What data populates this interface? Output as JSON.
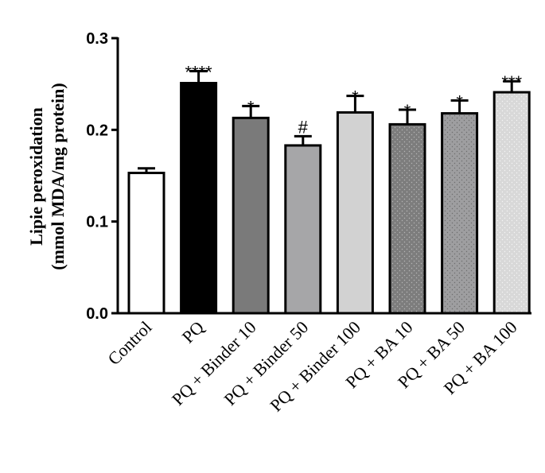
{
  "chart_data": {
    "type": "bar",
    "title": "",
    "xlabel": "",
    "ylabel_line1": "Lipie peroxidation",
    "ylabel_line2": "(mmol MDA/mg protein)",
    "ylim": [
      0,
      0.3
    ],
    "yticks": [
      "0.0",
      "0.1",
      "0.2",
      "0.3"
    ],
    "ytick_values": [
      0,
      0.1,
      0.2,
      0.3
    ],
    "categories": [
      "Control",
      "PQ",
      "PQ + Binder 10",
      "PQ + Binder 50",
      "PQ + Binder 100",
      "PQ + BA 10",
      "PQ + BA 50",
      "PQ + BA 100"
    ],
    "values": [
      0.153,
      0.251,
      0.213,
      0.183,
      0.219,
      0.206,
      0.218,
      0.241
    ],
    "errors": [
      0.005,
      0.013,
      0.013,
      0.01,
      0.018,
      0.016,
      0.014,
      0.012
    ],
    "significance": [
      "",
      "****",
      "*",
      "#",
      "*",
      "*",
      "*",
      "***"
    ],
    "fills": [
      "#ffffff",
      "#000000",
      "#7a7a7a",
      "#a6a6a8",
      "#d2d2d2",
      "#8c8c8c",
      "#a5a5a5",
      "#d8d8d8"
    ],
    "patterns": [
      "none",
      "none",
      "none",
      "none",
      "none",
      "dots",
      "dots",
      "dots"
    ]
  }
}
